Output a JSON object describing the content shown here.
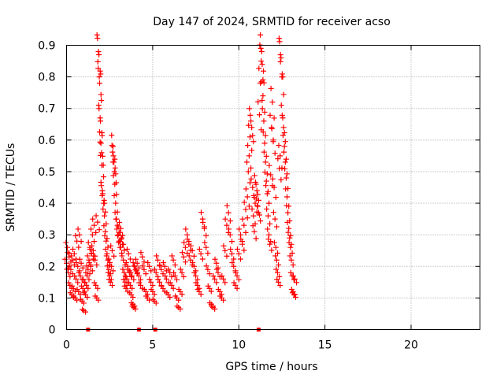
{
  "chart_data": {
    "type": "scatter",
    "title": "Day 147 of 2024, SRMTID for receiver acso",
    "xlabel": "GPS time / hours",
    "ylabel": "SRMTID / TECUs",
    "xlim": [
      0,
      24
    ],
    "ylim": [
      0,
      0.9
    ],
    "xticks": [
      0,
      5,
      10,
      15,
      20
    ],
    "yticks": [
      0,
      0.1,
      0.2,
      0.3,
      0.4,
      0.5,
      0.6,
      0.7,
      0.8,
      0.9
    ],
    "xtick_labels": [
      "0",
      "5",
      "10",
      "15",
      "20"
    ],
    "ytick_labels": [
      "0",
      "0.1",
      "0.2",
      "0.3",
      "0.4",
      "0.5",
      "0.6",
      "0.7",
      "0.8",
      "0.9"
    ],
    "grid": true,
    "marker": "plus",
    "color": "#ff0000",
    "zero_markers": [
      1.25,
      4.2,
      5.15,
      11.15
    ],
    "series": [
      {
        "name": "SRMTID",
        "points": [
          [
            0.0,
            0.21
          ],
          [
            0.05,
            0.26
          ],
          [
            0.1,
            0.18
          ],
          [
            0.15,
            0.23
          ],
          [
            0.2,
            0.14
          ],
          [
            0.25,
            0.19
          ],
          [
            0.3,
            0.11
          ],
          [
            0.35,
            0.22
          ],
          [
            0.4,
            0.13
          ],
          [
            0.45,
            0.24
          ],
          [
            0.5,
            0.1
          ],
          [
            0.55,
            0.16
          ],
          [
            0.6,
            0.28
          ],
          [
            0.65,
            0.2
          ],
          [
            0.7,
            0.12
          ],
          [
            0.75,
            0.3
          ],
          [
            0.8,
            0.17
          ],
          [
            0.85,
            0.21
          ],
          [
            0.9,
            0.09
          ],
          [
            0.95,
            0.13
          ],
          [
            1.0,
            0.06
          ],
          [
            1.05,
            0.15
          ],
          [
            1.1,
            0.11
          ],
          [
            1.15,
            0.14
          ],
          [
            1.2,
            0.17
          ],
          [
            1.25,
            0.19
          ],
          [
            1.3,
            0.22
          ],
          [
            1.35,
            0.26
          ],
          [
            1.4,
            0.2
          ],
          [
            1.45,
            0.24
          ],
          [
            1.5,
            0.3
          ],
          [
            1.55,
            0.25
          ],
          [
            1.6,
            0.33
          ],
          [
            1.65,
            0.22
          ],
          [
            1.7,
            0.14
          ],
          [
            1.75,
            0.1
          ],
          [
            1.8,
            0.34
          ],
          [
            1.85,
            0.88
          ],
          [
            1.88,
            0.87
          ],
          [
            1.9,
            0.8
          ],
          [
            1.92,
            0.78
          ],
          [
            1.95,
            0.67
          ],
          [
            1.97,
            0.66
          ],
          [
            2.0,
            0.59
          ],
          [
            2.03,
            0.56
          ],
          [
            2.05,
            0.52
          ],
          [
            2.08,
            0.44
          ],
          [
            2.1,
            0.43
          ],
          [
            2.15,
            0.4
          ],
          [
            2.2,
            0.36
          ],
          [
            2.25,
            0.31
          ],
          [
            2.3,
            0.28
          ],
          [
            2.35,
            0.24
          ],
          [
            2.4,
            0.22
          ],
          [
            2.45,
            0.19
          ],
          [
            2.5,
            0.17
          ],
          [
            2.55,
            0.15
          ],
          [
            2.6,
            0.2
          ],
          [
            2.65,
            0.25
          ],
          [
            2.7,
            0.58
          ],
          [
            2.72,
            0.55
          ],
          [
            2.75,
            0.53
          ],
          [
            2.78,
            0.5
          ],
          [
            2.8,
            0.46
          ],
          [
            2.85,
            0.4
          ],
          [
            2.9,
            0.35
          ],
          [
            2.95,
            0.33
          ],
          [
            3.0,
            0.3
          ],
          [
            3.05,
            0.28
          ],
          [
            3.1,
            0.26
          ],
          [
            3.15,
            0.32
          ],
          [
            3.2,
            0.29
          ],
          [
            3.25,
            0.27
          ],
          [
            3.3,
            0.22
          ],
          [
            3.35,
            0.18
          ],
          [
            3.4,
            0.15
          ],
          [
            3.45,
            0.13
          ],
          [
            3.5,
            0.16
          ],
          [
            3.55,
            0.2
          ],
          [
            3.6,
            0.24
          ],
          [
            3.65,
            0.18
          ],
          [
            3.7,
            0.14
          ],
          [
            3.75,
            0.11
          ],
          [
            3.8,
            0.17
          ],
          [
            3.85,
            0.08
          ],
          [
            3.9,
            0.07
          ],
          [
            3.95,
            0.2
          ],
          [
            4.0,
            0.19
          ],
          [
            4.1,
            0.21
          ],
          [
            4.2,
            0.17
          ],
          [
            4.3,
            0.14
          ],
          [
            4.4,
            0.23
          ],
          [
            4.5,
            0.19
          ],
          [
            4.6,
            0.12
          ],
          [
            4.7,
            0.1
          ],
          [
            4.8,
            0.2
          ],
          [
            4.9,
            0.15
          ],
          [
            5.0,
            0.12
          ],
          [
            5.1,
            0.09
          ],
          [
            5.2,
            0.18
          ],
          [
            5.3,
            0.22
          ],
          [
            5.4,
            0.15
          ],
          [
            5.5,
            0.19
          ],
          [
            5.6,
            0.13
          ],
          [
            5.7,
            0.2
          ],
          [
            5.8,
            0.16
          ],
          [
            5.9,
            0.11
          ],
          [
            6.0,
            0.18
          ],
          [
            6.1,
            0.14
          ],
          [
            6.2,
            0.22
          ],
          [
            6.3,
            0.17
          ],
          [
            6.4,
            0.1
          ],
          [
            6.5,
            0.07
          ],
          [
            6.6,
            0.12
          ],
          [
            6.7,
            0.18
          ],
          [
            6.8,
            0.23
          ],
          [
            6.9,
            0.26
          ],
          [
            7.0,
            0.3
          ],
          [
            7.1,
            0.27
          ],
          [
            7.2,
            0.22
          ],
          [
            7.3,
            0.25
          ],
          [
            7.4,
            0.2
          ],
          [
            7.5,
            0.17
          ],
          [
            7.6,
            0.14
          ],
          [
            7.7,
            0.12
          ],
          [
            7.8,
            0.24
          ],
          [
            7.9,
            0.35
          ],
          [
            8.0,
            0.32
          ],
          [
            8.1,
            0.26
          ],
          [
            8.2,
            0.19
          ],
          [
            8.3,
            0.13
          ],
          [
            8.4,
            0.08
          ],
          [
            8.5,
            0.07
          ],
          [
            8.6,
            0.16
          ],
          [
            8.7,
            0.21
          ],
          [
            8.8,
            0.18
          ],
          [
            8.9,
            0.12
          ],
          [
            9.0,
            0.1
          ],
          [
            9.1,
            0.16
          ],
          [
            9.2,
            0.25
          ],
          [
            9.3,
            0.33
          ],
          [
            9.4,
            0.37
          ],
          [
            9.5,
            0.3
          ],
          [
            9.6,
            0.24
          ],
          [
            9.7,
            0.2
          ],
          [
            9.8,
            0.14
          ],
          [
            9.9,
            0.17
          ],
          [
            10.0,
            0.24
          ],
          [
            10.1,
            0.3
          ],
          [
            10.2,
            0.27
          ],
          [
            10.3,
            0.33
          ],
          [
            10.4,
            0.38
          ],
          [
            10.5,
            0.42
          ],
          [
            10.55,
            0.5
          ],
          [
            10.6,
            0.55
          ],
          [
            10.65,
            0.61
          ],
          [
            10.7,
            0.66
          ],
          [
            10.75,
            0.64
          ],
          [
            10.8,
            0.45
          ],
          [
            10.85,
            0.36
          ],
          [
            10.9,
            0.31
          ],
          [
            10.95,
            0.4
          ],
          [
            11.0,
            0.46
          ],
          [
            11.05,
            0.44
          ],
          [
            11.1,
            0.39
          ],
          [
            11.15,
            0.37
          ],
          [
            11.2,
            0.68
          ],
          [
            11.25,
            0.78
          ],
          [
            11.3,
            0.85
          ],
          [
            11.33,
            0.88
          ],
          [
            11.36,
            0.84
          ],
          [
            11.4,
            0.74
          ],
          [
            11.45,
            0.66
          ],
          [
            11.5,
            0.59
          ],
          [
            11.55,
            0.53
          ],
          [
            11.6,
            0.47
          ],
          [
            11.65,
            0.43
          ],
          [
            11.7,
            0.36
          ],
          [
            11.75,
            0.3
          ],
          [
            11.8,
            0.27
          ],
          [
            11.85,
            0.49
          ],
          [
            11.9,
            0.64
          ],
          [
            11.95,
            0.72
          ],
          [
            12.0,
            0.6
          ],
          [
            12.05,
            0.45
          ],
          [
            12.1,
            0.35
          ],
          [
            12.15,
            0.26
          ],
          [
            12.2,
            0.22
          ],
          [
            12.25,
            0.18
          ],
          [
            12.3,
            0.15
          ],
          [
            12.35,
            0.51
          ],
          [
            12.4,
            0.55
          ],
          [
            12.42,
            0.87
          ],
          [
            12.45,
            0.86
          ],
          [
            12.5,
            0.8
          ],
          [
            12.55,
            0.67
          ],
          [
            12.6,
            0.64
          ],
          [
            12.65,
            0.58
          ],
          [
            12.7,
            0.53
          ],
          [
            12.75,
            0.48
          ],
          [
            12.8,
            0.42
          ],
          [
            12.85,
            0.37
          ],
          [
            12.9,
            0.32
          ],
          [
            12.95,
            0.29
          ],
          [
            13.0,
            0.26
          ],
          [
            13.05,
            0.22
          ],
          [
            13.1,
            0.17
          ],
          [
            13.15,
            0.12
          ],
          [
            13.2,
            0.11
          ],
          [
            13.25,
            0.16
          ]
        ]
      }
    ]
  }
}
